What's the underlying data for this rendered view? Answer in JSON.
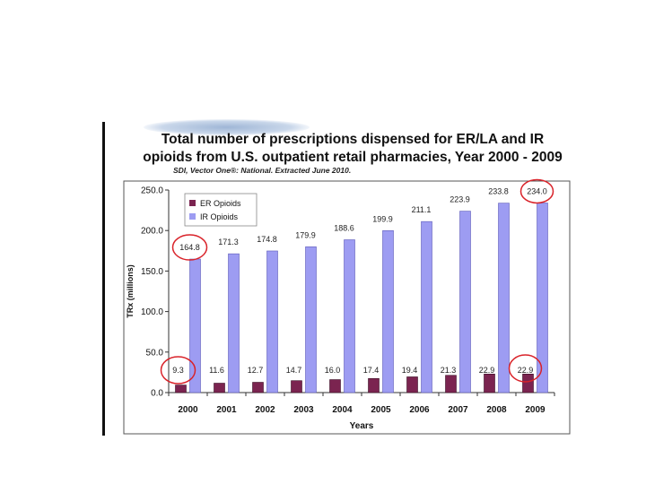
{
  "chart_data": {
    "type": "bar",
    "title": "Total number of prescriptions dispensed for ER/LA and IR opioids from U.S. outpatient retail pharmacies, Year 2000 - 2009",
    "subtitle": "SDI, Vector One®: National.  Extracted June 2010.",
    "xlabel": "Years",
    "ylabel": "TRx (millions)",
    "ylim": [
      0,
      250
    ],
    "yticks": [
      "0.0",
      "50.0",
      "100.0",
      "150.0",
      "200.0",
      "250.0"
    ],
    "categories": [
      "2000",
      "2001",
      "2002",
      "2003",
      "2004",
      "2005",
      "2006",
      "2007",
      "2008",
      "2009"
    ],
    "series": [
      {
        "name": "ER Opioids",
        "color": "#7b2450",
        "values": [
          9.3,
          11.6,
          12.7,
          14.7,
          16.0,
          17.4,
          19.4,
          21.3,
          22.9,
          22.9
        ],
        "labels": [
          "9.3",
          "11.6",
          "12.7",
          "14.7",
          "16.0",
          "17.4",
          "19.4",
          "21.3",
          "22.9",
          "22.9"
        ]
      },
      {
        "name": "IR Opioids",
        "color": "#9d9cf2",
        "values": [
          164.8,
          171.3,
          174.8,
          179.9,
          188.6,
          199.9,
          211.1,
          223.9,
          233.8,
          234.0
        ],
        "labels": [
          "164.8",
          "171.3",
          "174.8",
          "179.9",
          "188.6",
          "199.9",
          "211.1",
          "223.9",
          "233.8",
          "234.0"
        ]
      }
    ],
    "legend_position": "top-left",
    "annotations": [
      "red circles highlight 2000 and 2009 values"
    ],
    "highlight_color": "#d9232a",
    "grid": false
  }
}
